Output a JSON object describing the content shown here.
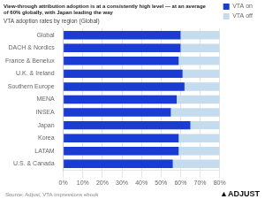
{
  "chart_data": {
    "type": "bar",
    "orientation": "horizontal",
    "title": "View-through attribution adoption is at a consistently high level — at an average\nof 60% globally, with Japan leading the way",
    "subtitle": "VTA adoption rates by region (Global)",
    "annotations": [
      "Source: Adjust, VTA impressions ebook",
      "▲ADJUST"
    ],
    "categories": [
      "Global",
      "DACH & Nordics",
      "France & Benelux",
      "U.K. & Ireland",
      "Southern Europe",
      "MENA",
      "INSEA",
      "Japan",
      "Korea",
      "LATAM",
      "U.S. & Canada"
    ],
    "series": [
      {
        "name": "VTA on",
        "color": "#1A3BD4",
        "values": [
          0.6,
          0.6,
          0.59,
          0.61,
          0.62,
          0.58,
          0.55,
          0.65,
          0.59,
          0.59,
          0.56
        ]
      },
      {
        "name": "VTA off",
        "color": "#C5DCEF",
        "values": [
          0.8,
          0.8,
          0.8,
          0.8,
          0.8,
          0.8,
          0.8,
          0.8,
          0.8,
          0.8,
          0.8
        ]
      }
    ],
    "xlim": [
      0,
      0.8
    ],
    "xticks": [
      {
        "value": 0,
        "label": "0%"
      },
      {
        "value": 0.1,
        "label": "10%"
      },
      {
        "value": 0.2,
        "label": "20%"
      },
      {
        "value": 0.3,
        "label": "30%"
      },
      {
        "value": 0.4,
        "label": "40%"
      },
      {
        "value": 0.5,
        "label": "50%"
      },
      {
        "value": 0.6,
        "label": "60%"
      },
      {
        "value": 0.7,
        "label": "70%"
      },
      {
        "value": 0.8,
        "label": "80%"
      }
    ],
    "grid": true,
    "legend": "right"
  }
}
